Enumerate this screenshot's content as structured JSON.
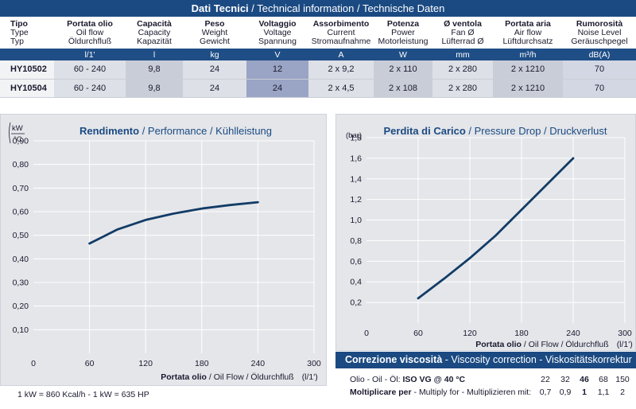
{
  "tech": {
    "title_main": "Dati Tecnici",
    "title_rest": " / Technical information / Technische Daten",
    "columns": [
      {
        "l1": "Tipo",
        "l2": "Type",
        "l3": "Typ",
        "unit": ""
      },
      {
        "l1": "Portata olio",
        "l2": "Oil flow",
        "l3": "Öldurchfluß",
        "unit": "l/1'"
      },
      {
        "l1": "Capacità",
        "l2": "Capacity",
        "l3": "Kapazität",
        "unit": "l"
      },
      {
        "l1": "Peso",
        "l2": "Weight",
        "l3": "Gewicht",
        "unit": "kg"
      },
      {
        "l1": "Voltaggio",
        "l2": "Voltage",
        "l3": "Spannung",
        "unit": "V"
      },
      {
        "l1": "Assorbimento",
        "l2": "Current",
        "l3": "Stromaufnahme",
        "unit": "A"
      },
      {
        "l1": "Potenza",
        "l2": "Power",
        "l3": "Motorleistung",
        "unit": "W"
      },
      {
        "l1": "Ø ventola",
        "l2": "Fan Ø",
        "l3": "Lüfterrad Ø",
        "unit": "mm"
      },
      {
        "l1": "Portata aria",
        "l2": "Air flow",
        "l3": "Lüftdurchsatz",
        "unit": "m³/h"
      },
      {
        "l1": "Rumorosità",
        "l2": "Noise Level",
        "l3": "Geräuschpegel",
        "unit": "dB(A)"
      }
    ],
    "rows": [
      [
        "HY10502",
        "60 - 240",
        "9,8",
        "24",
        "12",
        "2 x 9,2",
        "2 x 110",
        "2 x 280",
        "2 x 1210",
        "70"
      ],
      [
        "HY10504",
        "60 - 240",
        "9,8",
        "24",
        "24",
        "2 x 4,5",
        "2 x 108",
        "2 x 280",
        "2 x 1210",
        "70"
      ]
    ]
  },
  "performance": {
    "title_main": "Rendimento",
    "title_rest": " / Performance / Kühlleistung",
    "yunit_top": "kW",
    "yunit_bottom": "°C",
    "xlabel_main": "Portata olio",
    "xlabel_rest": " / Oil Flow / Öldurchfluß",
    "xunit": "(l/1')",
    "note": "1 kW = 860 Kcal/h  - 1 kW = 635 HP"
  },
  "pressure": {
    "title_main": "Perdita di Carico",
    "title_rest": " / Pressure Drop / Druckverlust",
    "yunit": "(bar)",
    "xlabel_main": "Portata olio",
    "xlabel_rest": " / Oil Flow / Öldurchfluß",
    "xunit": "(l/1')"
  },
  "viscosity": {
    "title_main": "Correzione viscosità",
    "title_rest": "  -  Viscosity correction  -  Viskositätskorrektur",
    "row1_label_prefix": "Olio - Oil - Öl: ",
    "row1_label_bold": "ISO VG @ 40 °C",
    "row2_label_bold": "Moltiplicare per",
    "row2_label_rest": " - Multiply for - Multiplizieren mit:",
    "grades": [
      "22",
      "32",
      "46",
      "68",
      "150"
    ],
    "multipliers": [
      "0,7",
      "0,9",
      "1",
      "1,1",
      "2"
    ]
  },
  "chart_data": [
    {
      "type": "line",
      "title": "Rendimento / Performance / Kühlleistung",
      "xlabel": "Portata olio / Oil Flow / Öldurchfluß (l/1')",
      "ylabel": "kW/°C",
      "xlim": [
        0,
        300
      ],
      "ylim": [
        0,
        0.9
      ],
      "xticks": [
        "0",
        "60",
        "120",
        "180",
        "240",
        "300"
      ],
      "yticks": [
        "0,10",
        "0,20",
        "0,30",
        "0,40",
        "0,50",
        "0,60",
        "0,70",
        "0,80",
        "0,90"
      ],
      "x": [
        60,
        90,
        120,
        150,
        180,
        210,
        240
      ],
      "y": [
        0.465,
        0.525,
        0.565,
        0.592,
        0.613,
        0.628,
        0.64
      ],
      "grid": true
    },
    {
      "type": "line",
      "title": "Perdita di Carico / Pressure Drop / Druckverlust",
      "xlabel": "Portata olio / Oil Flow / Öldurchfluß (l/1')",
      "ylabel": "(bar)",
      "xlim": [
        0,
        300
      ],
      "ylim": [
        0,
        1.8
      ],
      "xticks": [
        "0",
        "60",
        "120",
        "180",
        "240",
        "300"
      ],
      "yticks": [
        "0,2",
        "0,4",
        "0,6",
        "0,8",
        "1,0",
        "1,2",
        "1,4",
        "1,6",
        "1,8"
      ],
      "x": [
        60,
        90,
        120,
        150,
        180,
        210,
        240
      ],
      "y": [
        0.24,
        0.43,
        0.63,
        0.85,
        1.1,
        1.35,
        1.6
      ],
      "grid": true
    }
  ]
}
